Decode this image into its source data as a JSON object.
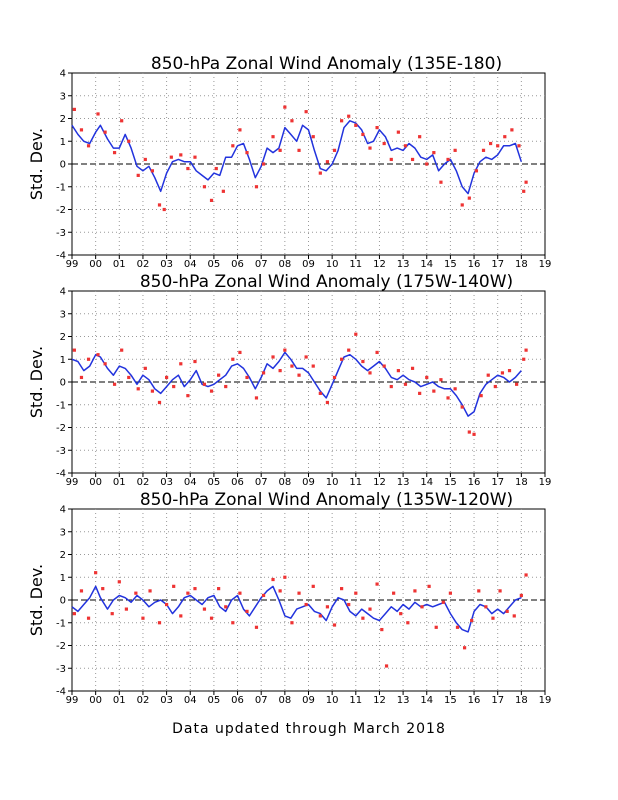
{
  "footer": "Data updated through March 2018",
  "colors": {
    "line": "#2233dd",
    "points": "#ee3333",
    "grid": "#999999",
    "zero": "#000000"
  },
  "chart_data": [
    {
      "type": "line",
      "title": "850-hPa Zonal Wind Anomaly (135E-180)",
      "ylabel": "Std. Dev.",
      "xlabel": "",
      "xlim": [
        1999,
        2019
      ],
      "ylim": [
        -4,
        4
      ],
      "grid": true,
      "xtick_labels": [
        "99",
        "00",
        "01",
        "02",
        "03",
        "04",
        "05",
        "06",
        "07",
        "08",
        "09",
        "10",
        "11",
        "12",
        "13",
        "14",
        "15",
        "16",
        "17",
        "18",
        "19"
      ],
      "ytick_labels": [
        "4",
        "3",
        "2",
        "1",
        "0",
        "-1",
        "-2",
        "-3",
        "-4"
      ],
      "series": [
        {
          "type": "line",
          "x": [
            1999.0,
            1999.25,
            1999.5,
            1999.75,
            2000.0,
            2000.2,
            2000.5,
            2000.75,
            2001.0,
            2001.25,
            2001.5,
            2001.75,
            2002.0,
            2002.25,
            2002.5,
            2002.75,
            2003.0,
            2003.25,
            2003.5,
            2003.75,
            2004.0,
            2004.25,
            2004.5,
            2004.75,
            2005.0,
            2005.25,
            2005.5,
            2005.75,
            2006.0,
            2006.25,
            2006.5,
            2006.75,
            2007.0,
            2007.25,
            2007.5,
            2007.75,
            2008.0,
            2008.25,
            2008.5,
            2008.75,
            2009.0,
            2009.25,
            2009.5,
            2009.75,
            2010.0,
            2010.25,
            2010.5,
            2010.75,
            2011.0,
            2011.25,
            2011.5,
            2011.75,
            2012.0,
            2012.25,
            2012.5,
            2012.75,
            2013.0,
            2013.25,
            2013.5,
            2013.75,
            2014.0,
            2014.25,
            2014.5,
            2014.75,
            2015.0,
            2015.25,
            2015.5,
            2015.75,
            2016.0,
            2016.25,
            2016.5,
            2016.75,
            2017.0,
            2017.25,
            2017.5,
            2017.75,
            2018.0
          ],
          "y": [
            1.7,
            1.3,
            1.0,
            0.9,
            1.4,
            1.7,
            1.1,
            0.7,
            0.7,
            1.3,
            0.7,
            -0.1,
            -0.3,
            -0.1,
            -0.6,
            -1.2,
            -0.4,
            0.1,
            0.2,
            0.1,
            0.1,
            -0.3,
            -0.5,
            -0.7,
            -0.4,
            -0.5,
            0.3,
            0.3,
            0.8,
            0.9,
            0.2,
            -0.6,
            -0.1,
            0.7,
            0.5,
            0.7,
            1.6,
            1.3,
            1.0,
            1.7,
            1.5,
            0.6,
            -0.2,
            -0.3,
            0.0,
            0.6,
            1.6,
            1.9,
            1.8,
            1.5,
            0.9,
            1.0,
            1.5,
            1.2,
            0.6,
            0.7,
            0.6,
            0.9,
            0.7,
            0.3,
            0.2,
            0.4,
            -0.3,
            0.0,
            0.2,
            -0.3,
            -1.0,
            -1.3,
            -0.4,
            0.1,
            0.3,
            0.2,
            0.4,
            0.8,
            0.8,
            0.9,
            0.1
          ]
        },
        {
          "type": "scatter",
          "x": [
            1999.1,
            1999.4,
            1999.7,
            2000.1,
            2000.4,
            2000.8,
            2001.1,
            2001.4,
            2001.8,
            2002.1,
            2002.4,
            2002.7,
            2002.9,
            2003.2,
            2003.6,
            2003.9,
            2004.2,
            2004.6,
            2004.9,
            2005.1,
            2005.4,
            2005.8,
            2006.1,
            2006.4,
            2006.8,
            2007.1,
            2007.5,
            2007.8,
            2008.0,
            2008.3,
            2008.6,
            2008.9,
            2009.2,
            2009.5,
            2009.8,
            2010.1,
            2010.4,
            2010.7,
            2011.0,
            2011.3,
            2011.6,
            2011.9,
            2012.2,
            2012.5,
            2012.8,
            2013.1,
            2013.4,
            2013.7,
            2014.0,
            2014.3,
            2014.6,
            2014.9,
            2015.2,
            2015.5,
            2015.8,
            2016.1,
            2016.4,
            2016.7,
            2017.0,
            2017.3,
            2017.6,
            2017.9,
            2018.1,
            2018.2
          ],
          "y": [
            2.4,
            1.5,
            0.8,
            2.2,
            1.4,
            0.5,
            1.9,
            1.0,
            -0.5,
            0.2,
            -0.3,
            -1.8,
            -2.0,
            0.3,
            0.4,
            -0.2,
            0.3,
            -1.0,
            -1.6,
            -0.2,
            -1.2,
            0.8,
            1.5,
            0.5,
            -1.0,
            0.0,
            1.2,
            0.6,
            2.5,
            1.9,
            0.6,
            2.3,
            1.2,
            -0.4,
            0.1,
            0.6,
            1.9,
            2.1,
            1.7,
            1.3,
            0.7,
            1.6,
            0.9,
            0.2,
            1.4,
            0.8,
            0.2,
            1.2,
            0.0,
            0.5,
            -0.8,
            0.2,
            0.6,
            -1.8,
            -1.5,
            -0.3,
            0.6,
            0.9,
            0.8,
            1.2,
            1.5,
            0.8,
            -1.2,
            -0.8
          ]
        }
      ]
    },
    {
      "type": "line",
      "title": "850-hPa Zonal Wind Anomaly (175W-140W)",
      "ylabel": "Std. Dev.",
      "xlabel": "",
      "xlim": [
        1999,
        2019
      ],
      "ylim": [
        -4,
        4
      ],
      "grid": true,
      "xtick_labels": [
        "99",
        "00",
        "01",
        "02",
        "03",
        "04",
        "05",
        "06",
        "07",
        "08",
        "09",
        "10",
        "11",
        "12",
        "13",
        "14",
        "15",
        "16",
        "17",
        "18",
        "19"
      ],
      "ytick_labels": [
        "4",
        "3",
        "2",
        "1",
        "0",
        "-1",
        "-2",
        "-3",
        "-4"
      ],
      "series": [
        {
          "type": "line",
          "x": [
            1999.0,
            1999.25,
            1999.5,
            1999.75,
            2000.0,
            2000.2,
            2000.5,
            2000.75,
            2001.0,
            2001.25,
            2001.5,
            2001.75,
            2002.0,
            2002.25,
            2002.5,
            2002.75,
            2003.0,
            2003.25,
            2003.5,
            2003.75,
            2004.0,
            2004.25,
            2004.5,
            2004.75,
            2005.0,
            2005.25,
            2005.5,
            2005.75,
            2006.0,
            2006.25,
            2006.5,
            2006.75,
            2007.0,
            2007.25,
            2007.5,
            2007.75,
            2008.0,
            2008.25,
            2008.5,
            2008.75,
            2009.0,
            2009.25,
            2009.5,
            2009.75,
            2010.0,
            2010.25,
            2010.5,
            2010.75,
            2011.0,
            2011.25,
            2011.5,
            2011.75,
            2012.0,
            2012.25,
            2012.5,
            2012.75,
            2013.0,
            2013.25,
            2013.5,
            2013.75,
            2014.0,
            2014.25,
            2014.5,
            2014.75,
            2015.0,
            2015.25,
            2015.5,
            2015.75,
            2016.0,
            2016.25,
            2016.5,
            2016.75,
            2017.0,
            2017.25,
            2017.5,
            2017.75,
            2018.0
          ],
          "y": [
            1.0,
            0.9,
            0.5,
            0.7,
            1.2,
            1.1,
            0.6,
            0.3,
            0.7,
            0.6,
            0.3,
            -0.1,
            0.3,
            0.1,
            -0.3,
            -0.5,
            -0.2,
            0.1,
            0.3,
            -0.2,
            0.1,
            0.5,
            -0.1,
            -0.2,
            -0.1,
            0.1,
            0.3,
            0.7,
            0.8,
            0.6,
            0.2,
            -0.3,
            0.2,
            0.8,
            0.6,
            0.9,
            1.3,
            1.0,
            0.6,
            0.6,
            0.4,
            0.0,
            -0.4,
            -0.7,
            -0.1,
            0.5,
            1.1,
            1.2,
            1.0,
            0.7,
            0.5,
            0.7,
            0.9,
            0.6,
            0.2,
            0.1,
            0.3,
            0.1,
            0.0,
            -0.2,
            -0.1,
            0.0,
            -0.2,
            -0.3,
            -0.3,
            -0.6,
            -1.0,
            -1.5,
            -1.3,
            -0.5,
            -0.1,
            0.1,
            0.3,
            0.2,
            0.0,
            0.2,
            0.5
          ]
        },
        {
          "type": "scatter",
          "x": [
            1999.1,
            1999.4,
            1999.7,
            2000.1,
            2000.4,
            2000.8,
            2001.1,
            2001.4,
            2001.8,
            2002.1,
            2002.4,
            2002.7,
            2003.0,
            2003.3,
            2003.6,
            2003.9,
            2004.2,
            2004.6,
            2004.9,
            2005.2,
            2005.5,
            2005.8,
            2006.1,
            2006.4,
            2006.8,
            2007.1,
            2007.5,
            2007.8,
            2008.0,
            2008.3,
            2008.6,
            2008.9,
            2009.2,
            2009.5,
            2009.8,
            2010.1,
            2010.4,
            2010.7,
            2011.0,
            2011.3,
            2011.6,
            2011.9,
            2012.2,
            2012.5,
            2012.8,
            2013.1,
            2013.4,
            2013.7,
            2014.0,
            2014.3,
            2014.6,
            2014.9,
            2015.2,
            2015.5,
            2015.8,
            2016.0,
            2016.3,
            2016.6,
            2016.9,
            2017.2,
            2017.5,
            2017.8,
            2018.1,
            2018.2
          ],
          "y": [
            1.4,
            0.2,
            1.0,
            1.2,
            0.8,
            -0.1,
            1.4,
            0.2,
            -0.3,
            0.6,
            -0.4,
            -0.9,
            0.2,
            -0.2,
            0.8,
            -0.6,
            0.9,
            -0.1,
            -0.4,
            0.3,
            -0.2,
            1.0,
            1.3,
            0.2,
            -0.7,
            0.4,
            1.1,
            0.5,
            1.4,
            0.7,
            0.3,
            1.1,
            0.7,
            -0.5,
            -0.9,
            0.2,
            1.0,
            1.4,
            2.1,
            0.9,
            0.4,
            1.3,
            0.7,
            -0.2,
            0.5,
            -0.1,
            0.6,
            -0.5,
            0.2,
            -0.4,
            0.1,
            -0.7,
            -0.3,
            -1.1,
            -2.2,
            -2.3,
            -0.6,
            0.3,
            -0.2,
            0.4,
            0.5,
            -0.1,
            1.0,
            1.4
          ]
        }
      ]
    },
    {
      "type": "line",
      "title": "850-hPa Zonal Wind Anomaly (135W-120W)",
      "ylabel": "Std. Dev.",
      "xlabel": "",
      "xlim": [
        1999,
        2019
      ],
      "ylim": [
        -4,
        4
      ],
      "grid": true,
      "xtick_labels": [
        "99",
        "00",
        "01",
        "02",
        "03",
        "04",
        "05",
        "06",
        "07",
        "08",
        "09",
        "10",
        "11",
        "12",
        "13",
        "14",
        "15",
        "16",
        "17",
        "18",
        "19"
      ],
      "ytick_labels": [
        "4",
        "3",
        "2",
        "1",
        "0",
        "-1",
        "-2",
        "-3",
        "-4"
      ],
      "series": [
        {
          "type": "line",
          "x": [
            1999.0,
            1999.25,
            1999.5,
            1999.75,
            2000.0,
            2000.2,
            2000.5,
            2000.75,
            2001.0,
            2001.25,
            2001.5,
            2001.75,
            2002.0,
            2002.25,
            2002.5,
            2002.75,
            2003.0,
            2003.25,
            2003.5,
            2003.75,
            2004.0,
            2004.25,
            2004.5,
            2004.75,
            2005.0,
            2005.25,
            2005.5,
            2005.75,
            2006.0,
            2006.25,
            2006.5,
            2006.75,
            2007.0,
            2007.25,
            2007.5,
            2007.75,
            2008.0,
            2008.25,
            2008.5,
            2008.75,
            2009.0,
            2009.25,
            2009.5,
            2009.75,
            2010.0,
            2010.25,
            2010.5,
            2010.75,
            2011.0,
            2011.25,
            2011.5,
            2011.75,
            2012.0,
            2012.25,
            2012.5,
            2012.75,
            2013.0,
            2013.25,
            2013.5,
            2013.75,
            2014.0,
            2014.25,
            2014.5,
            2014.75,
            2015.0,
            2015.25,
            2015.5,
            2015.75,
            2016.0,
            2016.25,
            2016.5,
            2016.75,
            2017.0,
            2017.25,
            2017.5,
            2017.75,
            2018.0
          ],
          "y": [
            -0.3,
            -0.5,
            -0.2,
            0.1,
            0.6,
            0.1,
            -0.4,
            0.0,
            0.2,
            0.1,
            -0.1,
            0.2,
            0.0,
            -0.3,
            -0.1,
            0.0,
            -0.2,
            -0.6,
            -0.3,
            0.1,
            0.2,
            0.0,
            -0.2,
            0.1,
            0.2,
            -0.3,
            -0.5,
            0.0,
            0.2,
            -0.4,
            -0.7,
            -0.3,
            0.1,
            0.4,
            0.6,
            0.0,
            -0.7,
            -0.8,
            -0.4,
            -0.3,
            -0.2,
            -0.5,
            -0.6,
            -0.9,
            -0.3,
            0.1,
            0.0,
            -0.5,
            -0.7,
            -0.4,
            -0.6,
            -0.8,
            -0.9,
            -0.6,
            -0.3,
            -0.5,
            -0.2,
            -0.4,
            -0.1,
            -0.3,
            -0.2,
            -0.3,
            -0.2,
            -0.1,
            -0.6,
            -1.0,
            -1.3,
            -1.4,
            -0.5,
            -0.2,
            -0.3,
            -0.6,
            -0.4,
            -0.6,
            -0.3,
            0.0,
            0.1
          ]
        },
        {
          "type": "scatter",
          "x": [
            1999.1,
            1999.4,
            1999.7,
            2000.0,
            2000.3,
            2000.7,
            2001.0,
            2001.3,
            2001.7,
            2002.0,
            2002.3,
            2002.7,
            2003.0,
            2003.3,
            2003.6,
            2003.9,
            2004.2,
            2004.6,
            2004.9,
            2005.2,
            2005.5,
            2005.8,
            2006.1,
            2006.4,
            2006.8,
            2007.1,
            2007.5,
            2007.8,
            2008.0,
            2008.3,
            2008.6,
            2008.9,
            2009.2,
            2009.5,
            2009.8,
            2010.1,
            2010.4,
            2010.7,
            2011.0,
            2011.3,
            2011.6,
            2011.9,
            2012.1,
            2012.3,
            2012.6,
            2012.9,
            2013.2,
            2013.5,
            2013.8,
            2014.1,
            2014.4,
            2014.7,
            2015.0,
            2015.3,
            2015.6,
            2015.9,
            2016.2,
            2016.5,
            2016.8,
            2017.1,
            2017.4,
            2017.7,
            2018.0,
            2018.2
          ],
          "y": [
            -0.6,
            0.4,
            -0.8,
            1.2,
            0.5,
            -0.6,
            0.8,
            -0.4,
            0.3,
            -0.8,
            0.4,
            -1.0,
            -0.2,
            0.6,
            -0.7,
            0.3,
            0.5,
            -0.4,
            -0.8,
            0.5,
            -0.3,
            -1.0,
            0.3,
            -0.5,
            -1.2,
            0.2,
            0.9,
            0.4,
            1.0,
            -1.0,
            0.3,
            -0.2,
            0.6,
            -0.7,
            -0.3,
            -1.1,
            0.5,
            -0.2,
            0.3,
            -0.8,
            -0.4,
            0.7,
            -1.3,
            -2.9,
            0.3,
            -0.6,
            -1.0,
            0.4,
            -0.3,
            0.6,
            -1.2,
            -0.1,
            0.3,
            -1.2,
            -2.1,
            -0.9,
            0.4,
            -0.3,
            -0.8,
            0.4,
            -0.5,
            -0.7,
            0.2,
            1.1
          ]
        }
      ]
    }
  ]
}
